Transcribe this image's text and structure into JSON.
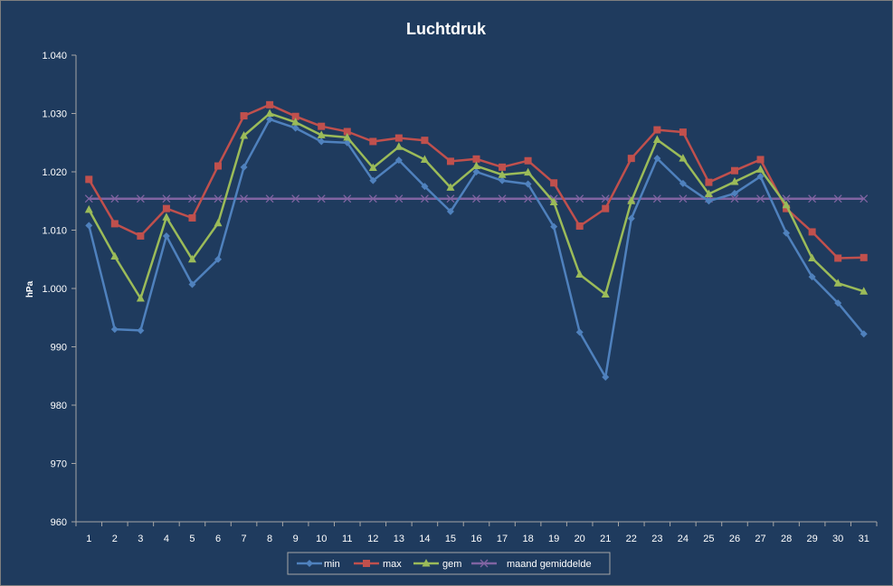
{
  "chart_data": {
    "type": "line",
    "title": "Luchtdruk",
    "xlabel": "",
    "ylabel": "hPa",
    "ylim": [
      960,
      1040
    ],
    "yticks": [
      960,
      970,
      980,
      990,
      1000,
      1010,
      1020,
      1030,
      1040
    ],
    "ytick_labels": [
      "960",
      "970",
      "980",
      "990",
      "1.000",
      "1.010",
      "1.020",
      "1.030",
      "1.040"
    ],
    "categories": [
      "1",
      "2",
      "3",
      "4",
      "5",
      "6",
      "7",
      "8",
      "9",
      "10",
      "11",
      "12",
      "13",
      "14",
      "15",
      "16",
      "17",
      "18",
      "19",
      "20",
      "21",
      "22",
      "23",
      "24",
      "25",
      "26",
      "27",
      "28",
      "29",
      "30",
      "31"
    ],
    "grid": false,
    "legend_position": "bottom",
    "series": [
      {
        "name": "min",
        "color": "#4f81bd",
        "marker": "diamond",
        "values": [
          1010.8,
          993.0,
          992.8,
          1009.0,
          1000.7,
          1005.0,
          1020.8,
          1029.0,
          1027.5,
          1025.2,
          1025.0,
          1018.5,
          1022.0,
          1017.5,
          1013.2,
          1020.0,
          1018.5,
          1017.9,
          1010.6,
          992.5,
          984.8,
          1012.0,
          1022.3,
          1018.0,
          1015.0,
          1016.3,
          1019.2,
          1009.5,
          1002.0,
          997.5,
          992.2
        ]
      },
      {
        "name": "max",
        "color": "#c0504d",
        "marker": "square",
        "values": [
          1018.7,
          1011.1,
          1009.0,
          1013.7,
          1012.1,
          1021.0,
          1029.6,
          1031.5,
          1029.5,
          1027.8,
          1026.9,
          1025.2,
          1025.8,
          1025.4,
          1021.8,
          1022.2,
          1020.8,
          1021.9,
          1018.1,
          1010.7,
          1013.7,
          1022.3,
          1027.2,
          1026.8,
          1018.2,
          1020.2,
          1022.1,
          1013.7,
          1009.7,
          1005.2,
          1005.3
        ]
      },
      {
        "name": "gem",
        "color": "#9bbb59",
        "marker": "triangle",
        "values": [
          1013.5,
          1005.5,
          998.3,
          1012.2,
          1005.0,
          1011.2,
          1026.2,
          1030.0,
          1028.5,
          1026.3,
          1025.9,
          1020.7,
          1024.3,
          1022.1,
          1017.3,
          1021.0,
          1019.5,
          1019.9,
          1014.8,
          1002.4,
          999.0,
          1015.0,
          1025.5,
          1022.3,
          1016.2,
          1018.3,
          1020.4,
          1014.3,
          1005.2,
          1000.9,
          999.5
        ]
      },
      {
        "name": "maand gemiddelde",
        "color": "#8064a2",
        "marker": "x",
        "values": [
          1015.4,
          1015.4,
          1015.4,
          1015.4,
          1015.4,
          1015.4,
          1015.4,
          1015.4,
          1015.4,
          1015.4,
          1015.4,
          1015.4,
          1015.4,
          1015.4,
          1015.4,
          1015.4,
          1015.4,
          1015.4,
          1015.4,
          1015.4,
          1015.4,
          1015.4,
          1015.4,
          1015.4,
          1015.4,
          1015.4,
          1015.4,
          1015.4,
          1015.4,
          1015.4,
          1015.4
        ]
      }
    ]
  }
}
